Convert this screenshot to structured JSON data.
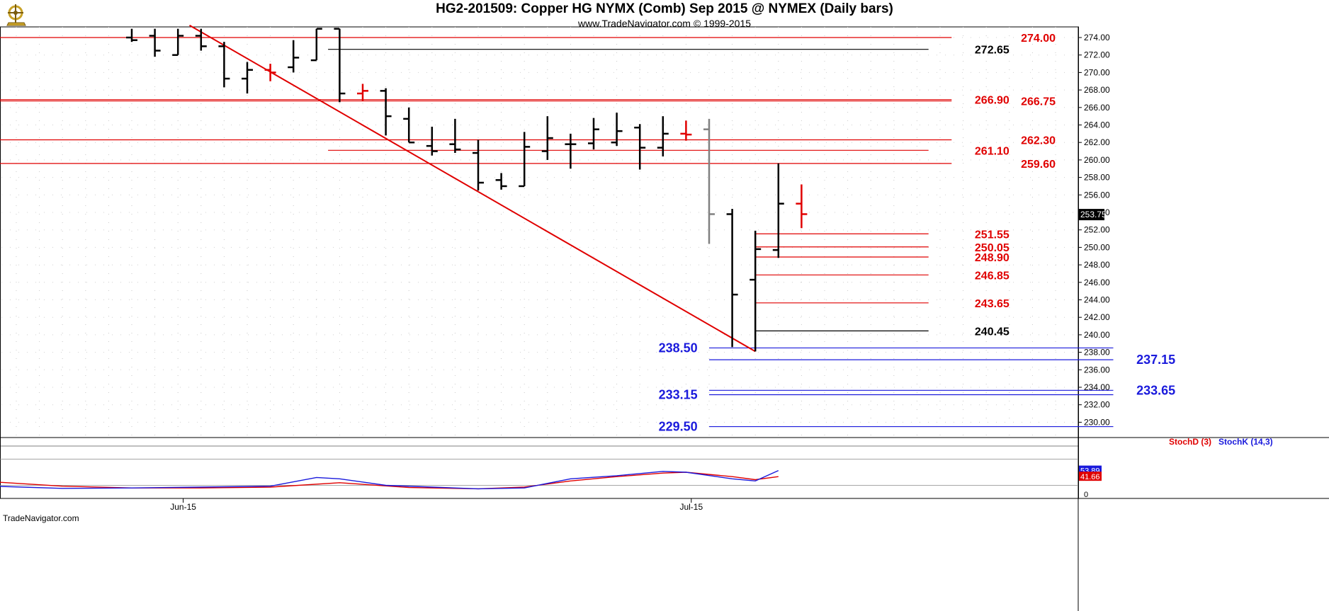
{
  "title": "HG2-201509:  Copper HG NYMX (Comb) Sep 2015 @ NYMEX  (Daily bars)",
  "subtitle": "www.TradeNavigator.com © 1999-2015",
  "watermark": "TradeNavigator.com",
  "logo_icon": "trade-navigator-logo-icon",
  "chart_data": {
    "type": "ohlc",
    "ylim": [
      228.5,
      275.5
    ],
    "y_ticks": [
      "274.00",
      "272.00",
      "270.00",
      "268.00",
      "266.00",
      "264.00",
      "262.00",
      "260.00",
      "258.00",
      "256.00",
      "254.00",
      "252.00",
      "250.00",
      "248.00",
      "246.00",
      "244.00",
      "242.00",
      "240.00",
      "238.00",
      "236.00",
      "234.00",
      "232.00",
      "230.00"
    ],
    "y_tick_values": [
      274,
      272,
      270,
      268,
      266,
      264,
      262,
      260,
      258,
      256,
      254,
      252,
      250,
      248,
      246,
      244,
      242,
      240,
      238,
      236,
      234,
      232,
      230
    ],
    "last_price": "253.75",
    "x_labels": [
      {
        "label": "Jun-15",
        "bar": 1
      },
      {
        "label": "Jul-15",
        "bar": 23
      }
    ],
    "bars": [
      {
        "bar": 0,
        "o": 274.0,
        "h": 275.0,
        "l": 273.5,
        "c": 273.7,
        "color": "#000000"
      },
      {
        "bar": 1,
        "o": 274.2,
        "h": 275.0,
        "l": 271.8,
        "c": 272.5,
        "color": "#000000"
      },
      {
        "bar": 2,
        "o": 272.0,
        "h": 275.0,
        "l": 272.0,
        "c": 274.2,
        "color": "#000000"
      },
      {
        "bar": 3,
        "o": 274.2,
        "h": 275.0,
        "l": 272.5,
        "c": 273.0,
        "color": "#000000"
      },
      {
        "bar": 4,
        "o": 273.0,
        "h": 273.5,
        "l": 268.3,
        "c": 269.3,
        "color": "#000000"
      },
      {
        "bar": 5,
        "o": 269.3,
        "h": 271.2,
        "l": 267.6,
        "c": 270.3,
        "color": "#000000"
      },
      {
        "bar": 6,
        "o": 270.3,
        "h": 271.0,
        "l": 269.0,
        "c": 270.0,
        "color": "#e00000"
      },
      {
        "bar": 7,
        "o": 270.6,
        "h": 273.7,
        "l": 270.0,
        "c": 271.7,
        "color": "#000000"
      },
      {
        "bar": 8,
        "o": 271.4,
        "h": 275.0,
        "l": 271.4,
        "c": 275.0,
        "color": "#000000"
      },
      {
        "bar": 9,
        "o": 275.0,
        "h": 275.0,
        "l": 266.6,
        "c": 267.6,
        "color": "#000000"
      },
      {
        "bar": 10,
        "o": 267.6,
        "h": 268.7,
        "l": 266.7,
        "c": 267.9,
        "color": "#e00000"
      },
      {
        "bar": 11,
        "o": 267.9,
        "h": 268.2,
        "l": 262.8,
        "c": 265.0,
        "color": "#000000"
      },
      {
        "bar": 12,
        "o": 264.7,
        "h": 266.0,
        "l": 262.0,
        "c": 262.0,
        "color": "#000000"
      },
      {
        "bar": 13,
        "o": 261.6,
        "h": 263.8,
        "l": 260.5,
        "c": 261.0,
        "color": "#000000"
      },
      {
        "bar": 14,
        "o": 261.8,
        "h": 264.7,
        "l": 260.8,
        "c": 261.2,
        "color": "#000000"
      },
      {
        "bar": 15,
        "o": 260.8,
        "h": 262.3,
        "l": 256.5,
        "c": 257.4,
        "color": "#000000"
      },
      {
        "bar": 16,
        "o": 257.7,
        "h": 258.5,
        "l": 256.6,
        "c": 257.0,
        "color": "#000000"
      },
      {
        "bar": 17,
        "o": 257.0,
        "h": 263.2,
        "l": 257.0,
        "c": 261.5,
        "color": "#000000"
      },
      {
        "bar": 18,
        "o": 261.0,
        "h": 265.0,
        "l": 260.0,
        "c": 262.5,
        "color": "#000000"
      },
      {
        "bar": 19,
        "o": 261.8,
        "h": 263.0,
        "l": 259.0,
        "c": 261.8,
        "color": "#000000"
      },
      {
        "bar": 20,
        "o": 261.9,
        "h": 264.8,
        "l": 261.2,
        "c": 263.5,
        "color": "#000000"
      },
      {
        "bar": 21,
        "o": 262.0,
        "h": 265.4,
        "l": 261.6,
        "c": 263.3,
        "color": "#000000"
      },
      {
        "bar": 22,
        "o": 263.7,
        "h": 264.1,
        "l": 258.9,
        "c": 261.4,
        "color": "#000000"
      },
      {
        "bar": 23,
        "o": 261.4,
        "h": 265.0,
        "l": 260.4,
        "c": 263.0,
        "color": "#000000"
      },
      {
        "bar": 24,
        "o": 263.0,
        "h": 264.5,
        "l": 262.2,
        "c": 262.9,
        "color": "#e00000"
      },
      {
        "bar": 25,
        "o": 263.5,
        "h": 264.7,
        "l": 250.4,
        "c": 253.8,
        "color": "#808080"
      },
      {
        "bar": 26,
        "o": 253.8,
        "h": 254.4,
        "l": 238.6,
        "c": 244.6,
        "color": "#000000"
      },
      {
        "bar": 27,
        "o": 246.3,
        "h": 251.9,
        "l": 238.1,
        "c": 249.8,
        "color": "#000000"
      },
      {
        "bar": 28,
        "o": 249.7,
        "h": 259.6,
        "l": 248.8,
        "c": 255.0,
        "color": "#000000"
      },
      {
        "bar": 29,
        "o": 255.0,
        "h": 257.2,
        "l": 252.2,
        "c": 253.8,
        "color": "#e00000"
      }
    ],
    "trendline": {
      "from": {
        "bar": 2.5,
        "price": 275.4
      },
      "to": {
        "bar": 27,
        "price": 238.1
      },
      "color": "#e00000"
    },
    "levels": [
      {
        "price": 274.0,
        "label": "274.00",
        "color": "#e00000",
        "from": -6,
        "to": 35.5,
        "label_bar": 38.5,
        "label_side": "right"
      },
      {
        "price": 272.65,
        "label": "272.65",
        "color": "#000000",
        "from": 8.5,
        "to": 34.5,
        "label_bar": 36.5,
        "label_side": "right"
      },
      {
        "price": 266.9,
        "label": "266.90",
        "color": "#e00000",
        "from": -6,
        "to": 35.5,
        "label_bar": 36.5,
        "label_side": "right"
      },
      {
        "price": 266.75,
        "label": "266.75",
        "color": "#e00000",
        "from": -6,
        "to": 35.5,
        "label_bar": 38.5,
        "label_side": "right"
      },
      {
        "price": 262.3,
        "label": "262.30",
        "color": "#e00000",
        "from": -6,
        "to": 35.5,
        "label_bar": 38.5,
        "label_side": "right"
      },
      {
        "price": 261.1,
        "label": "261.10",
        "color": "#e00000",
        "from": 8.5,
        "to": 34.5,
        "label_bar": 36.5,
        "label_side": "right"
      },
      {
        "price": 259.6,
        "label": "259.60",
        "color": "#e00000",
        "from": -6,
        "to": 35.5,
        "label_bar": 38.5,
        "label_side": "right"
      },
      {
        "price": 251.55,
        "label": "251.55",
        "color": "#e00000",
        "from": 27,
        "to": 34.5,
        "label_bar": 36.5,
        "label_side": "right"
      },
      {
        "price": 250.05,
        "label": "250.05",
        "color": "#e00000",
        "from": 27,
        "to": 34.5,
        "label_bar": 36.5,
        "label_side": "right"
      },
      {
        "price": 248.9,
        "label": "248.90",
        "color": "#e00000",
        "from": 27,
        "to": 34.5,
        "label_bar": 36.5,
        "label_side": "right"
      },
      {
        "price": 246.85,
        "label": "246.85",
        "color": "#e00000",
        "from": 27,
        "to": 34.5,
        "label_bar": 36.5,
        "label_side": "right"
      },
      {
        "price": 243.65,
        "label": "243.65",
        "color": "#e00000",
        "from": 27,
        "to": 34.5,
        "label_bar": 36.5,
        "label_side": "right"
      },
      {
        "price": 240.45,
        "label": "240.45",
        "color": "#000000",
        "from": 27,
        "to": 34.5,
        "label_bar": 36.5,
        "label_side": "right"
      },
      {
        "price": 238.5,
        "label": "238.50",
        "color": "#1a1adc",
        "from": 25,
        "to": 42.5,
        "label_bar": 24.5,
        "label_side": "left"
      },
      {
        "price": 237.15,
        "label": "237.15",
        "color": "#1a1adc",
        "from": 25,
        "to": 42.5,
        "label_bar": 43.5,
        "label_side": "right"
      },
      {
        "price": 233.65,
        "label": "233.65",
        "color": "#1a1adc",
        "from": 25,
        "to": 42.5,
        "label_bar": 43.5,
        "label_side": "right"
      },
      {
        "price": 233.15,
        "label": "233.15",
        "color": "#1a1adc",
        "from": 25,
        "to": 42.5,
        "label_bar": 24.5,
        "label_side": "left"
      },
      {
        "price": 229.5,
        "label": "229.50",
        "color": "#1a1adc",
        "from": 25,
        "to": 42.5,
        "label_bar": 24.5,
        "label_side": "left"
      }
    ],
    "stochastic": {
      "legend": [
        {
          "name": "StochD (3)",
          "color": "#e00000"
        },
        {
          "name": "StochK (14,3)",
          "color": "#1a1adc"
        }
      ],
      "ylim": [
        -10,
        110
      ],
      "zero_label": "0",
      "d_label": "41.66",
      "k_label": "53.89",
      "reference_levels": [
        80,
        20
      ],
      "stoch_d": [
        [
          -6,
          28
        ],
        [
          -3,
          18
        ],
        [
          0,
          14
        ],
        [
          3,
          14
        ],
        [
          6,
          16
        ],
        [
          9,
          26
        ],
        [
          12,
          15
        ],
        [
          15,
          12
        ],
        [
          17,
          16
        ],
        [
          19,
          30
        ],
        [
          21,
          40
        ],
        [
          23,
          48
        ],
        [
          24,
          50
        ],
        [
          26,
          40
        ],
        [
          27,
          33
        ],
        [
          28,
          40
        ]
      ],
      "stoch_k": [
        [
          -6,
          18
        ],
        [
          -3,
          13
        ],
        [
          0,
          14
        ],
        [
          3,
          16
        ],
        [
          6,
          18
        ],
        [
          8,
          38
        ],
        [
          9,
          35
        ],
        [
          11,
          20
        ],
        [
          13,
          16
        ],
        [
          15,
          12
        ],
        [
          17,
          14
        ],
        [
          19,
          35
        ],
        [
          21,
          42
        ],
        [
          23,
          52
        ],
        [
          24,
          50
        ],
        [
          26,
          35
        ],
        [
          27,
          30
        ],
        [
          28,
          53.89
        ]
      ]
    }
  }
}
